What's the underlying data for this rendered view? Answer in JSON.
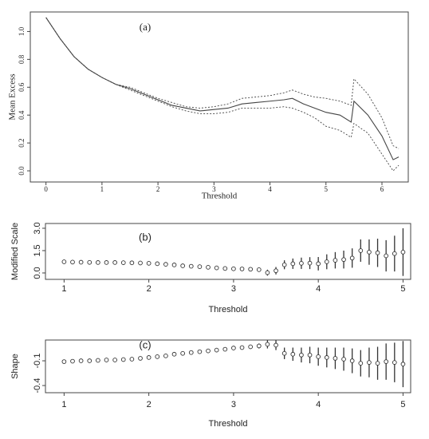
{
  "chart_data": [
    {
      "type": "line",
      "annotation": "(a)",
      "x_label": "Threshold",
      "y_label": "Mean Excess",
      "x": [
        0,
        0.25,
        0.5,
        0.75,
        1,
        1.25,
        1.5,
        1.75,
        2,
        2.25,
        2.5,
        2.75,
        3,
        3.25,
        3.5,
        3.75,
        4,
        4.25,
        4.4,
        4.6,
        4.8,
        5,
        5.25,
        5.45,
        5.5,
        5.75,
        6,
        6.2,
        6.3
      ],
      "series": [
        {
          "color": "#444444",
          "style": "solid",
          "values": [
            1.1,
            0.95,
            0.82,
            0.73,
            0.67,
            0.62,
            0.59,
            0.55,
            0.51,
            0.47,
            0.45,
            0.43,
            0.44,
            0.45,
            0.48,
            0.49,
            0.5,
            0.51,
            0.52,
            0.48,
            0.45,
            0.42,
            0.4,
            0.35,
            0.5,
            0.4,
            0.25,
            0.08,
            0.1
          ]
        },
        {
          "color": "#444444",
          "style": "dotted",
          "values": [
            1.1,
            0.95,
            0.82,
            0.73,
            0.67,
            0.62,
            0.6,
            0.56,
            0.52,
            0.49,
            0.46,
            0.45,
            0.46,
            0.48,
            0.52,
            0.53,
            0.54,
            0.56,
            0.58,
            0.55,
            0.53,
            0.52,
            0.5,
            0.47,
            0.66,
            0.55,
            0.38,
            0.18,
            0.16
          ]
        },
        {
          "color": "#444444",
          "style": "dotted",
          "values": [
            1.1,
            0.95,
            0.82,
            0.73,
            0.67,
            0.62,
            0.58,
            0.54,
            0.5,
            0.46,
            0.43,
            0.41,
            0.41,
            0.42,
            0.45,
            0.45,
            0.45,
            0.46,
            0.45,
            0.42,
            0.38,
            0.32,
            0.29,
            0.24,
            0.34,
            0.27,
            0.12,
            0.0,
            0.04
          ]
        }
      ],
      "xlim": [
        -0.28,
        6.47
      ],
      "xticks": [
        0,
        1,
        2,
        3,
        4,
        5,
        6
      ],
      "ylim": [
        -0.08,
        1.14
      ],
      "yticks": [
        {
          "value": 0,
          "label": "0.0"
        },
        0.2,
        0.4,
        0.6,
        0.8,
        {
          "value": 1,
          "label": "1.0"
        }
      ]
    },
    {
      "type": "errorbar",
      "annotation": "(b)",
      "x_label": "Threshold",
      "y_label": "Modified Scale",
      "x": [
        1,
        1.1,
        1.2,
        1.3,
        1.4,
        1.5,
        1.6,
        1.7,
        1.8,
        1.9,
        2,
        2.1,
        2.2,
        2.3,
        2.4,
        2.5,
        2.6,
        2.7,
        2.8,
        2.9,
        3,
        3.1,
        3.2,
        3.3,
        3.4,
        3.5,
        3.6,
        3.7,
        3.8,
        3.9,
        4,
        4.1,
        4.2,
        4.3,
        4.4,
        4.5,
        4.6,
        4.7,
        4.8,
        4.9,
        5
      ],
      "values": [
        0.75,
        0.73,
        0.72,
        0.71,
        0.7,
        0.7,
        0.7,
        0.69,
        0.68,
        0.67,
        0.65,
        0.62,
        0.58,
        0.54,
        0.48,
        0.45,
        0.42,
        0.38,
        0.34,
        0.3,
        0.28,
        0.27,
        0.25,
        0.22,
        0.02,
        0.15,
        0.55,
        0.62,
        0.65,
        0.66,
        0.62,
        0.75,
        0.85,
        0.9,
        1.0,
        1.5,
        1.4,
        1.35,
        1.15,
        1.3,
        1.4
      ],
      "errors": [
        0.05,
        0.05,
        0.05,
        0.05,
        0.05,
        0.05,
        0.05,
        0.05,
        0.05,
        0.05,
        0.05,
        0.05,
        0.05,
        0.05,
        0.05,
        0.05,
        0.05,
        0.05,
        0.05,
        0.05,
        0.05,
        0.05,
        0.05,
        0.05,
        0.2,
        0.25,
        0.3,
        0.35,
        0.38,
        0.4,
        0.45,
        0.5,
        0.55,
        0.6,
        0.65,
        0.75,
        0.85,
        0.95,
        1.05,
        1.2,
        1.6
      ],
      "color": "#333333",
      "xlim": [
        0.78,
        5.09
      ],
      "xticks": [
        1,
        2,
        3,
        4,
        5
      ],
      "ylim": [
        -0.43,
        3.32
      ],
      "yticks": [
        {
          "value": 0,
          "label": "0.0"
        },
        1.5,
        {
          "value": 3,
          "label": "3.0"
        }
      ]
    },
    {
      "type": "errorbar",
      "annotation": "(c)",
      "x_label": "Threshold",
      "y_label": "Shape",
      "x": [
        1,
        1.1,
        1.2,
        1.3,
        1.4,
        1.5,
        1.6,
        1.7,
        1.8,
        1.9,
        2,
        2.1,
        2.2,
        2.3,
        2.4,
        2.5,
        2.6,
        2.7,
        2.8,
        2.9,
        3,
        3.1,
        3.2,
        3.3,
        3.4,
        3.5,
        3.6,
        3.7,
        3.8,
        3.9,
        4,
        4.1,
        4.2,
        4.3,
        4.4,
        4.5,
        4.6,
        4.7,
        4.8,
        4.9,
        5
      ],
      "values": [
        -0.11,
        -0.105,
        -0.1,
        -0.1,
        -0.095,
        -0.09,
        -0.09,
        -0.085,
        -0.08,
        -0.07,
        -0.06,
        -0.05,
        -0.04,
        -0.02,
        -0.01,
        0.0,
        0.01,
        0.02,
        0.03,
        0.04,
        0.055,
        0.06,
        0.07,
        0.08,
        0.1,
        0.09,
        -0.01,
        -0.02,
        -0.03,
        -0.03,
        -0.05,
        -0.06,
        -0.07,
        -0.08,
        -0.1,
        -0.13,
        -0.12,
        -0.13,
        -0.11,
        -0.12,
        -0.14
      ],
      "errors": [
        0.01,
        0.01,
        0.01,
        0.01,
        0.01,
        0.01,
        0.01,
        0.01,
        0.01,
        0.01,
        0.01,
        0.01,
        0.01,
        0.01,
        0.01,
        0.01,
        0.01,
        0.01,
        0.01,
        0.01,
        0.01,
        0.01,
        0.01,
        0.03,
        0.05,
        0.06,
        0.07,
        0.08,
        0.09,
        0.1,
        0.11,
        0.12,
        0.13,
        0.14,
        0.15,
        0.16,
        0.18,
        0.2,
        0.22,
        0.24,
        0.28
      ],
      "color": "#333333",
      "xlim": [
        0.78,
        5.09
      ],
      "xticks": [
        1,
        2,
        3,
        4,
        5
      ],
      "ylim": [
        -0.487,
        0.152
      ],
      "yticks": [
        -0.4,
        -0.1
      ]
    }
  ]
}
